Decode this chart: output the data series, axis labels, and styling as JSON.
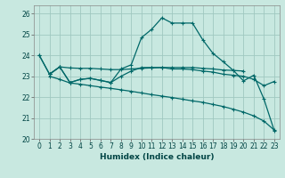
{
  "xlabel": "Humidex (Indice chaleur)",
  "xlim": [
    -0.5,
    23.5
  ],
  "ylim": [
    20,
    26.4
  ],
  "yticks": [
    20,
    21,
    22,
    23,
    24,
    25,
    26
  ],
  "xticks": [
    0,
    1,
    2,
    3,
    4,
    5,
    6,
    7,
    8,
    9,
    10,
    11,
    12,
    13,
    14,
    15,
    16,
    17,
    18,
    19,
    20,
    21,
    22,
    23
  ],
  "background_color": "#c8e8e0",
  "grid_color": "#a0c8c0",
  "line_color": "#006868",
  "lines": [
    {
      "x": [
        0,
        1,
        2,
        3,
        4,
        5,
        6,
        7,
        8,
        9,
        10,
        11,
        12,
        13,
        14,
        15,
        16,
        17,
        18,
        19,
        20
      ],
      "y": [
        24.0,
        23.1,
        23.45,
        23.4,
        23.38,
        23.38,
        23.35,
        23.32,
        23.32,
        23.35,
        23.38,
        23.4,
        23.42,
        23.42,
        23.42,
        23.42,
        23.38,
        23.35,
        23.3,
        23.28,
        23.25
      ]
    },
    {
      "x": [
        0,
        1,
        2,
        3,
        4,
        5,
        6,
        7,
        8,
        9,
        10,
        11,
        12,
        13,
        14,
        15,
        16,
        17,
        18,
        19,
        20,
        21,
        22,
        23
      ],
      "y": [
        24.0,
        23.1,
        23.45,
        22.7,
        22.85,
        22.9,
        22.8,
        22.7,
        23.35,
        23.55,
        24.85,
        25.25,
        25.8,
        25.55,
        25.55,
        25.55,
        24.75,
        24.1,
        23.7,
        23.28,
        22.78,
        23.05,
        21.9,
        20.4
      ]
    },
    {
      "x": [
        1,
        2,
        3,
        4,
        5,
        6,
        7,
        8,
        9,
        10,
        11,
        12,
        13,
        14,
        15,
        16,
        17,
        18,
        19,
        20,
        21,
        22,
        23
      ],
      "y": [
        23.1,
        23.45,
        22.7,
        22.85,
        22.9,
        22.8,
        22.7,
        23.0,
        23.25,
        23.42,
        23.42,
        23.42,
        23.35,
        23.35,
        23.32,
        23.25,
        23.2,
        23.1,
        23.05,
        23.0,
        22.85,
        22.55,
        22.75
      ]
    },
    {
      "x": [
        1,
        2,
        3,
        4,
        5,
        6,
        7,
        8,
        9,
        10,
        11,
        12,
        13,
        14,
        15,
        16,
        17,
        18,
        19,
        20,
        21,
        22,
        23
      ],
      "y": [
        23.0,
        22.85,
        22.68,
        22.62,
        22.55,
        22.48,
        22.42,
        22.35,
        22.28,
        22.2,
        22.12,
        22.05,
        21.98,
        21.9,
        21.82,
        21.75,
        21.65,
        21.55,
        21.42,
        21.28,
        21.1,
        20.85,
        20.42
      ]
    }
  ]
}
